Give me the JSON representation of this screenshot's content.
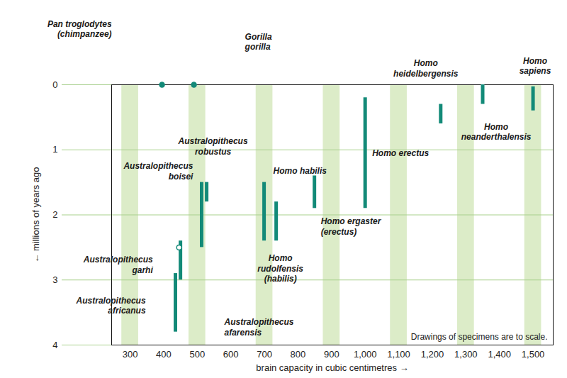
{
  "chart_data": {
    "type": "range",
    "x_label": "brain capacity in cubic centimetres",
    "y_label": "millions of years ago",
    "note": "Drawings of specimens are to scale.",
    "color": "#138a78",
    "grid": true,
    "xlim": [
      245,
      1560
    ],
    "xticks": [
      300,
      400,
      500,
      600,
      700,
      800,
      900,
      {
        "value": 1000,
        "label": "1,000"
      },
      {
        "value": 1100,
        "label": "1,100"
      },
      {
        "value": 1200,
        "label": "1,200"
      },
      {
        "value": 1300,
        "label": "1,300"
      },
      {
        "value": 1400,
        "label": "1,400"
      },
      {
        "value": 1500,
        "label": "1,500"
      }
    ],
    "ylim": [
      0,
      4
    ],
    "yticks": [
      0,
      1,
      2,
      3,
      4
    ],
    "items": [
      {
        "label": "Pan troglodytes\n(chimpanzee)",
        "brain_capacity": 395,
        "mya": 0,
        "marker": "circle"
      },
      {
        "label": "Gorilla\ngorilla",
        "brain_capacity": 490,
        "mya": 0,
        "marker": "circle"
      },
      {
        "label": "Australopithecus\nafarensis",
        "brain_capacity": 435,
        "mya": [
          2.9,
          3.8
        ]
      },
      {
        "label": "Australopithecus\nafricanus",
        "brain_capacity": 450,
        "mya": [
          2.4,
          3.0
        ]
      },
      {
        "label": "Australopithecus\ngarhi",
        "brain_capacity": 446,
        "mya": 2.5,
        "marker": "circle-open"
      },
      {
        "label": "Australopithecus\nboisei",
        "brain_capacity": 513,
        "mya": [
          1.5,
          2.5
        ]
      },
      {
        "label": "Australopithecus\nrobustus",
        "brain_capacity": 528,
        "mya": [
          1.5,
          1.8
        ]
      },
      {
        "label": "Homo habilis",
        "brain_capacity": 699,
        "mya": [
          1.5,
          2.4
        ]
      },
      {
        "label": "Homo\nrudolfensis\n(habilis)",
        "brain_capacity": 735,
        "mya": [
          1.8,
          2.4
        ]
      },
      {
        "label": "Homo ergaster\n(erectus)",
        "brain_capacity": 849,
        "mya": [
          1.4,
          1.9
        ]
      },
      {
        "label": "Homo erectus",
        "brain_capacity": 1000,
        "mya": [
          0.2,
          1.9
        ]
      },
      {
        "label": "Homo\nheidelbergensis",
        "brain_capacity": 1225,
        "mya": [
          0.3,
          0.6
        ]
      },
      {
        "label": "Homo\nsapiens",
        "brain_capacity": 1350,
        "mya": [
          0,
          0.3
        ]
      },
      {
        "label": "Homo\nneanderthalensis",
        "brain_capacity": 1500,
        "mya": [
          0.03,
          0.4
        ]
      }
    ]
  }
}
